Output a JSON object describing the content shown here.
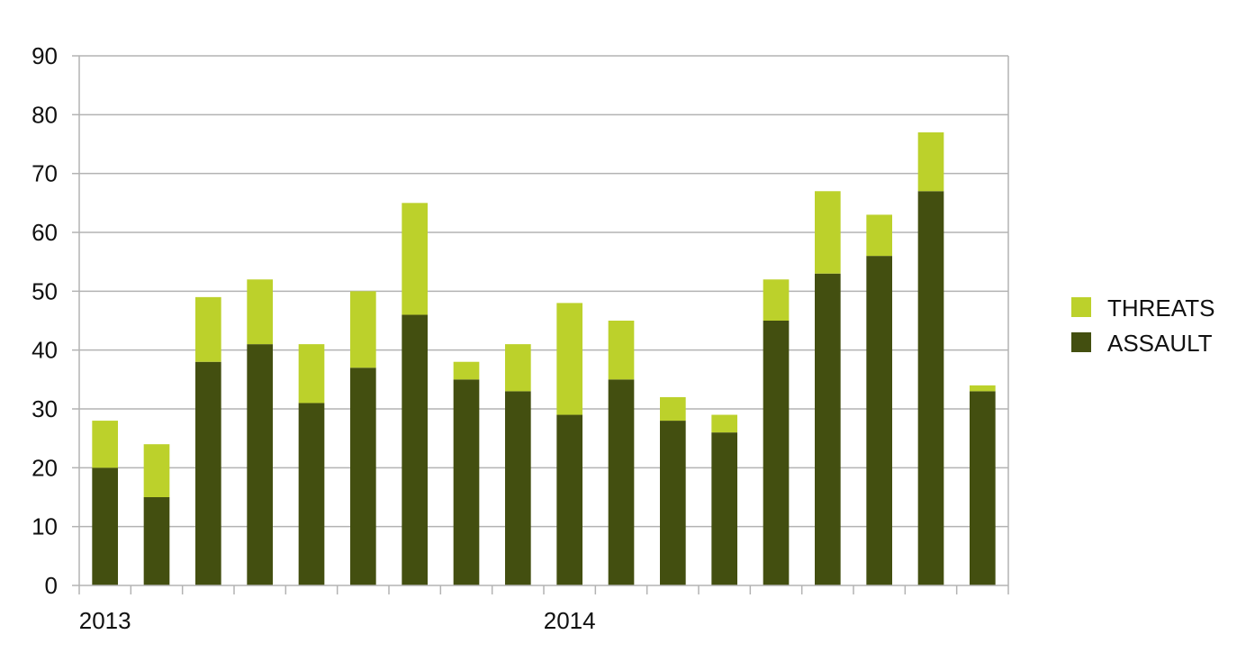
{
  "chart_data": {
    "type": "bar",
    "stacked": true,
    "categories": [
      "2013",
      "",
      "",
      "",
      "",
      "",
      "",
      "",
      "",
      "2014",
      "",
      "",
      "",
      "",
      "",
      "",
      "",
      ""
    ],
    "series": [
      {
        "name": "ASSAULT",
        "color": "#434f10",
        "values": [
          20,
          15,
          38,
          41,
          31,
          37,
          46,
          35,
          33,
          29,
          35,
          28,
          26,
          45,
          53,
          56,
          67,
          33
        ]
      },
      {
        "name": "THREATS",
        "color": "#bcd12b",
        "values": [
          8,
          9,
          11,
          11,
          10,
          13,
          19,
          3,
          8,
          19,
          10,
          4,
          3,
          7,
          14,
          7,
          10,
          1
        ]
      }
    ],
    "ylim": [
      0,
      90
    ],
    "yticks": [
      0,
      10,
      20,
      30,
      40,
      50,
      60,
      70,
      80,
      90
    ],
    "grid": true,
    "legend_position": "right",
    "legend": [
      {
        "label": "THREATS",
        "color": "#bcd12b"
      },
      {
        "label": "ASSAULT",
        "color": "#434f10"
      }
    ],
    "title": "",
    "xlabel": "",
    "ylabel": ""
  }
}
